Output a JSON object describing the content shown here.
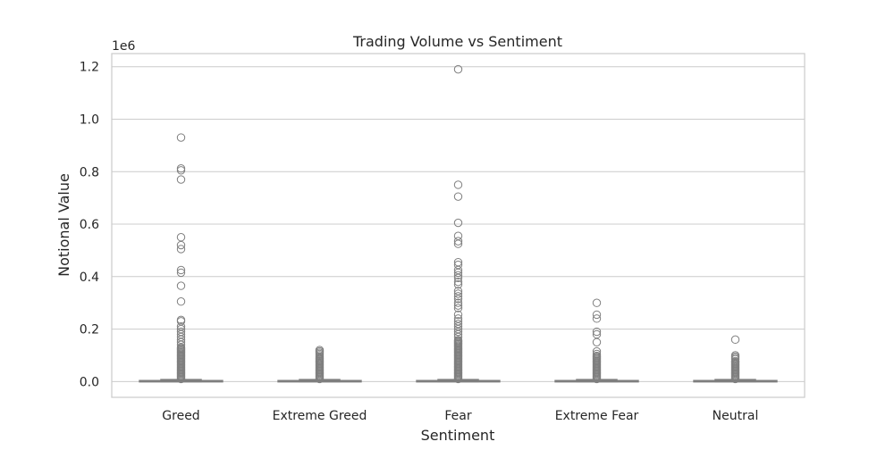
{
  "chart_data": {
    "type": "box",
    "title": "Trading Volume vs Sentiment",
    "xlabel": "Sentiment",
    "ylabel": "Notional Value",
    "y_offset_label": "1e6",
    "y_unit_multiplier": 1000000,
    "ylim": [
      -0.06,
      1.25
    ],
    "yticks": [
      0.0,
      0.2,
      0.4,
      0.6,
      0.8,
      1.0,
      1.2
    ],
    "ytick_labels": [
      "0.0",
      "0.2",
      "0.4",
      "0.6",
      "0.8",
      "1.0",
      "1.2"
    ],
    "grid": true,
    "categories": [
      "Greed",
      "Extreme Greed",
      "Fear",
      "Extreme Fear",
      "Neutral"
    ],
    "box_color": "#7f7f7f",
    "series": [
      {
        "category": "Greed",
        "q1": 0.0,
        "median": 0.001,
        "q3": 0.004,
        "whisker_low": 0.0,
        "whisker_high": 0.008,
        "outliers_dense_range": [
          0.01,
          0.13
        ],
        "outliers": [
          0.14,
          0.15,
          0.16,
          0.17,
          0.18,
          0.19,
          0.2,
          0.21,
          0.23,
          0.235,
          0.305,
          0.365,
          0.415,
          0.425,
          0.505,
          0.52,
          0.55,
          0.77,
          0.805,
          0.812,
          0.93
        ]
      },
      {
        "category": "Extreme Greed",
        "q1": 0.0,
        "median": 0.001,
        "q3": 0.004,
        "whisker_low": 0.0,
        "whisker_high": 0.008,
        "outliers_dense_range": [
          0.01,
          0.09
        ],
        "outliers": [
          0.095,
          0.1,
          0.105,
          0.11,
          0.115,
          0.12
        ]
      },
      {
        "category": "Fear",
        "q1": 0.0,
        "median": 0.001,
        "q3": 0.004,
        "whisker_low": 0.0,
        "whisker_high": 0.008,
        "outliers_dense_range": [
          0.01,
          0.16
        ],
        "outliers": [
          0.17,
          0.18,
          0.19,
          0.2,
          0.21,
          0.22,
          0.23,
          0.24,
          0.255,
          0.28,
          0.29,
          0.3,
          0.315,
          0.325,
          0.335,
          0.345,
          0.37,
          0.38,
          0.395,
          0.405,
          0.415,
          0.425,
          0.445,
          0.455,
          0.525,
          0.535,
          0.555,
          0.605,
          0.705,
          0.75,
          1.19
        ]
      },
      {
        "category": "Extreme Fear",
        "q1": 0.0,
        "median": 0.001,
        "q3": 0.004,
        "whisker_low": 0.0,
        "whisker_high": 0.008,
        "outliers_dense_range": [
          0.01,
          0.1
        ],
        "outliers": [
          0.105,
          0.115,
          0.15,
          0.18,
          0.19,
          0.24,
          0.255,
          0.3
        ]
      },
      {
        "category": "Neutral",
        "q1": 0.0,
        "median": 0.001,
        "q3": 0.004,
        "whisker_low": 0.0,
        "whisker_high": 0.008,
        "outliers_dense_range": [
          0.01,
          0.08
        ],
        "outliers": [
          0.085,
          0.09,
          0.095,
          0.1,
          0.16
        ]
      }
    ]
  }
}
